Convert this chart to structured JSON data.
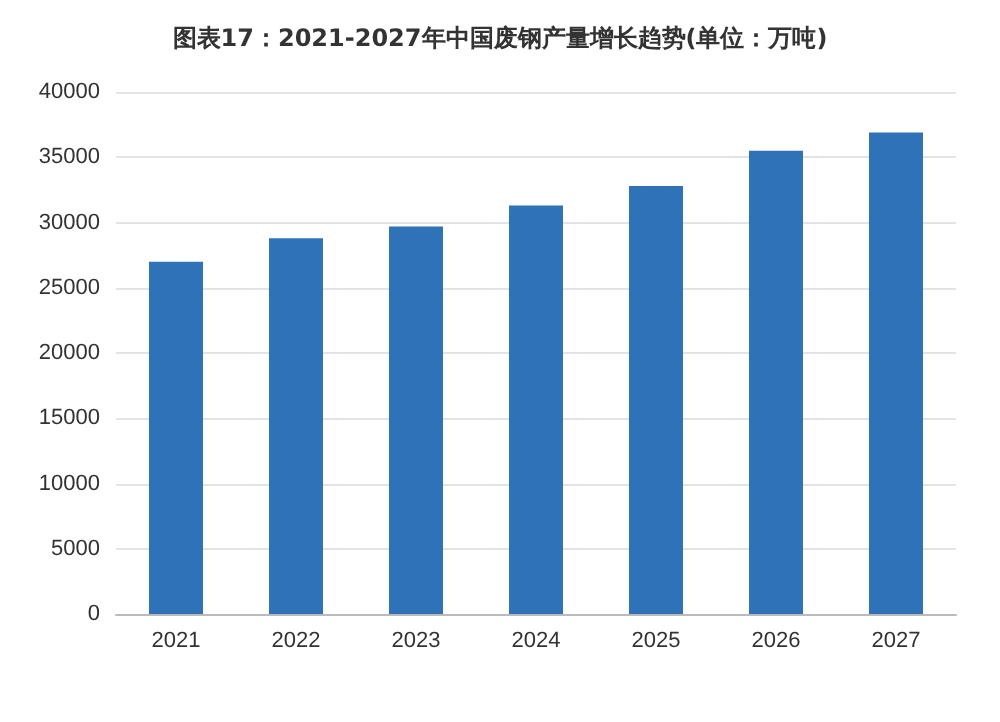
{
  "chart_data": {
    "type": "bar",
    "title": "图表17：2021-2027年中国废钢产量增长趋势(单位：万吨)",
    "categories": [
      "2021",
      "2022",
      "2023",
      "2024",
      "2025",
      "2026",
      "2027"
    ],
    "values": [
      27000,
      28800,
      29700,
      31300,
      32800,
      35500,
      36900
    ],
    "color": "#2f72b8",
    "ylim": [
      0,
      40000
    ],
    "yticks": [
      0,
      5000,
      10000,
      15000,
      20000,
      25000,
      30000,
      35000,
      40000
    ],
    "grid": "y"
  }
}
